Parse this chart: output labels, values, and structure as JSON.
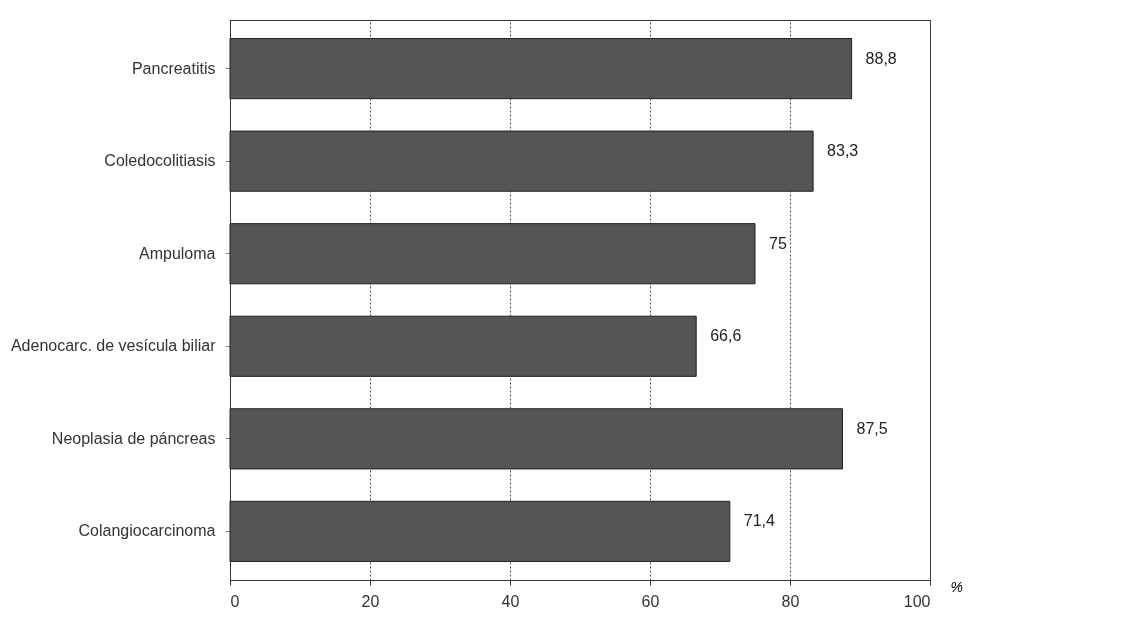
{
  "chart_data": {
    "type": "bar",
    "orientation": "horizontal",
    "categories": [
      "Pancreatitis",
      "Coledocolitiasis",
      "Ampuloma",
      "Adenocarc. de vesícula biliar",
      "Neoplasia de páncreas",
      "Colangiocarcinoma"
    ],
    "values": [
      88.8,
      83.3,
      75,
      66.6,
      87.5,
      71.4
    ],
    "value_labels": [
      "88,8",
      "83,3",
      "75",
      "66,6",
      "87,5",
      "71,4"
    ],
    "color": "#555555",
    "xlabel": "%",
    "xlim": [
      0,
      100
    ],
    "xticks": [
      0,
      20,
      40,
      60,
      80,
      100
    ],
    "grid": "x"
  }
}
